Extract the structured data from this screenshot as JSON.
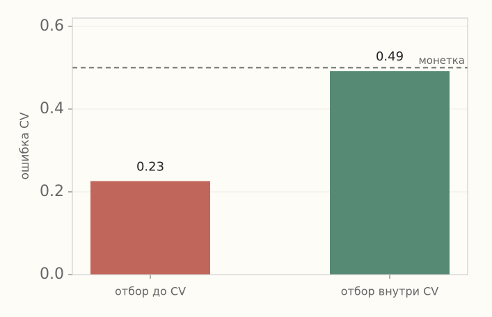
{
  "chart_data": {
    "type": "bar",
    "categories": [
      "отбор до CV",
      "отбор внутри CV"
    ],
    "values": [
      0.226,
      0.492
    ],
    "value_labels": [
      "0.23",
      "0.49"
    ],
    "colors": [
      "#c0665a",
      "#578a74"
    ],
    "ylabel": "ошибка CV",
    "ylim": [
      0,
      0.62
    ],
    "yticks": [
      {
        "value": 0,
        "label": "0.0"
      },
      0.2,
      0.4,
      0.6
    ],
    "grid": true,
    "reference_line": {
      "value": 0.5,
      "label": "монетка",
      "color": "#707070"
    }
  }
}
